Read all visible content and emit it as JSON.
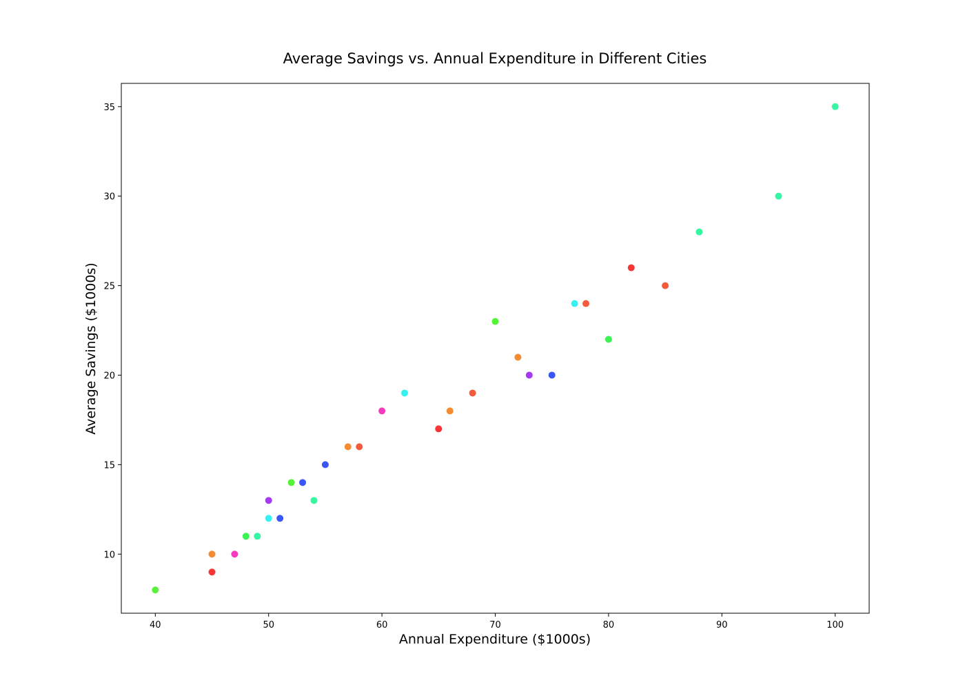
{
  "chart_data": {
    "type": "scatter",
    "title": "Average Savings vs. Annual Expenditure in Different Cities",
    "xlabel": "Annual Expenditure ($1000s)",
    "ylabel": "Average Savings ($1000s)",
    "xlim": [
      37,
      103
    ],
    "ylim": [
      6.7,
      36.3
    ],
    "xticks": [
      "40",
      "50",
      "60",
      "70",
      "80",
      "90",
      "100"
    ],
    "yticks": [
      "10",
      "15",
      "20",
      "25",
      "30",
      "35"
    ],
    "grid": false,
    "points": [
      {
        "x": 40,
        "y": 8,
        "color": "#59f23a"
      },
      {
        "x": 45,
        "y": 9,
        "color": "#f73535"
      },
      {
        "x": 45,
        "y": 10,
        "color": "#f58b32"
      },
      {
        "x": 47,
        "y": 10,
        "color": "#f53ac0"
      },
      {
        "x": 48,
        "y": 11,
        "color": "#3af251"
      },
      {
        "x": 49,
        "y": 11,
        "color": "#35f7a1"
      },
      {
        "x": 50,
        "y": 12,
        "color": "#35f2f0"
      },
      {
        "x": 50,
        "y": 13,
        "color": "#a53af5"
      },
      {
        "x": 51,
        "y": 12,
        "color": "#3a56f5"
      },
      {
        "x": 52,
        "y": 14,
        "color": "#59f23a"
      },
      {
        "x": 53,
        "y": 14,
        "color": "#3a56f5"
      },
      {
        "x": 54,
        "y": 13,
        "color": "#35f7a1"
      },
      {
        "x": 55,
        "y": 15,
        "color": "#3a56f5"
      },
      {
        "x": 57,
        "y": 16,
        "color": "#f58b32"
      },
      {
        "x": 58,
        "y": 16,
        "color": "#f55a3a"
      },
      {
        "x": 60,
        "y": 18,
        "color": "#f53ac0"
      },
      {
        "x": 62,
        "y": 19,
        "color": "#35f2f0"
      },
      {
        "x": 65,
        "y": 17,
        "color": "#f73535"
      },
      {
        "x": 66,
        "y": 18,
        "color": "#f58b32"
      },
      {
        "x": 68,
        "y": 19,
        "color": "#f55a3a"
      },
      {
        "x": 70,
        "y": 23,
        "color": "#59f23a"
      },
      {
        "x": 72,
        "y": 21,
        "color": "#f58b32"
      },
      {
        "x": 73,
        "y": 20,
        "color": "#a53af5"
      },
      {
        "x": 75,
        "y": 20,
        "color": "#3a56f5"
      },
      {
        "x": 77,
        "y": 24,
        "color": "#35f2f0"
      },
      {
        "x": 78,
        "y": 24,
        "color": "#f55a3a"
      },
      {
        "x": 80,
        "y": 22,
        "color": "#3af251"
      },
      {
        "x": 82,
        "y": 26,
        "color": "#f73535"
      },
      {
        "x": 85,
        "y": 25,
        "color": "#f55a3a"
      },
      {
        "x": 88,
        "y": 28,
        "color": "#35f7a1"
      },
      {
        "x": 95,
        "y": 30,
        "color": "#35f7a1"
      },
      {
        "x": 100,
        "y": 35,
        "color": "#35f7a1"
      }
    ]
  }
}
